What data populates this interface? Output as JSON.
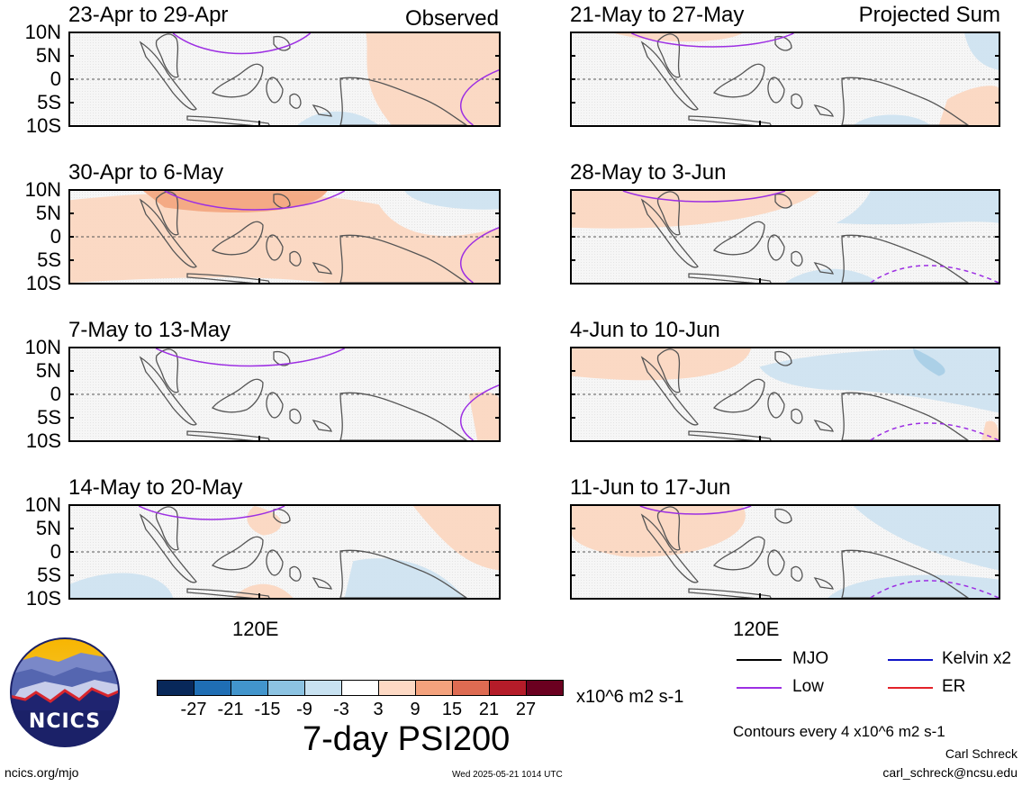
{
  "colors": {
    "pos_light": "#fbd7c1",
    "pos_mid": "#f3a882",
    "neg_light": "#cfe3f0",
    "neg_mid": "#a9cfe6",
    "mjo": "#000000",
    "low": "#9d2fe3",
    "kelvin": "#1015c8",
    "er": "#e3222a",
    "coast": "#555555"
  },
  "column_tags": {
    "left": "Observed",
    "right": "Projected Sum"
  },
  "panels": [
    {
      "title": "23-Apr to 29-Apr"
    },
    {
      "title": "30-Apr to 6-May"
    },
    {
      "title": "7-May to 13-May"
    },
    {
      "title": "14-May to 20-May"
    },
    {
      "title": "21-May to 27-May"
    },
    {
      "title": "28-May to 3-Jun"
    },
    {
      "title": "4-Jun to 10-Jun"
    },
    {
      "title": "11-Jun to 17-Jun"
    }
  ],
  "lat_labels": [
    "10N",
    "5N",
    "0",
    "5S",
    "10S"
  ],
  "x_label": "120E",
  "colorbar": {
    "colors": [
      "#08285a",
      "#1f6eb4",
      "#4295cc",
      "#8cc3e2",
      "#c8e2f1",
      "#ffffff",
      "#fdd9c4",
      "#f4a27d",
      "#de6b52",
      "#b51c29",
      "#6b0020"
    ],
    "labels": [
      "-27",
      "-21",
      "-15",
      "-9",
      "-3",
      "3",
      "9",
      "15",
      "21",
      "27"
    ],
    "units": "x10^6 m2 s-1",
    "title": "7-day PSI200"
  },
  "legend": {
    "mjo": "MJO",
    "low": "Low",
    "kelvin": "Kelvin x2",
    "er": "ER",
    "contours_note": "Contours every 4 x10^6 m2 s-1"
  },
  "logo": {
    "text": "NCICS"
  },
  "footer": {
    "site": "ncics.org/mjo",
    "timestamp": "Wed 2025-05-21 1014 UTC",
    "author": "Carl Schreck",
    "email": "carl_schreck@ncsu.edu"
  }
}
